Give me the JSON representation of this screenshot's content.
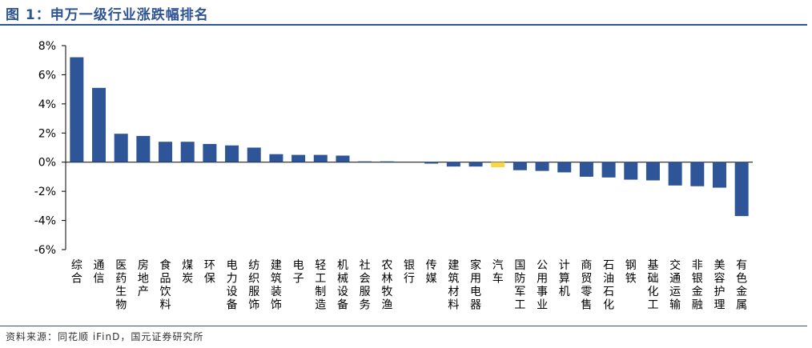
{
  "header": {
    "title": "图 1：申万一级行业涨跌幅排名"
  },
  "footer": {
    "source": "资料来源：同花顺 iFinD，国元证券研究所"
  },
  "colors": {
    "bar": "#2E5597",
    "highlight": "#F9D548",
    "brand": "#2E5495"
  },
  "chart_data": {
    "type": "bar",
    "title": "申万一级行业涨跌幅排名",
    "xlabel": "",
    "ylabel": "",
    "ylim": [
      -6,
      8
    ],
    "yticks": [
      8,
      6,
      4,
      2,
      0,
      -2,
      -4,
      -6
    ],
    "ytick_labels": [
      "8%",
      "6%",
      "4%",
      "2%",
      "0%",
      "-2%",
      "-4%",
      "-6%"
    ],
    "grid": false,
    "highlight_category": "汽车",
    "categories": [
      "综合",
      "通信",
      "医药生物",
      "房地产",
      "食品饮料",
      "煤炭",
      "环保",
      "电力设备",
      "纺织服饰",
      "建筑装饰",
      "电子",
      "轻工制造",
      "机械设备",
      "社会服务",
      "农林牧渔",
      "银行",
      "传媒",
      "建筑材料",
      "家用电器",
      "汽车",
      "国防军工",
      "公用事业",
      "计算机",
      "商贸零售",
      "石油石化",
      "钢铁",
      "基础化工",
      "交通运输",
      "非银金融",
      "美容护理",
      "有色金属"
    ],
    "values": [
      7.2,
      5.1,
      1.95,
      1.8,
      1.4,
      1.4,
      1.25,
      1.15,
      1.0,
      0.55,
      0.5,
      0.5,
      0.45,
      0.05,
      0.02,
      0.0,
      -0.1,
      -0.3,
      -0.3,
      -0.35,
      -0.55,
      -0.6,
      -0.7,
      -1.0,
      -1.05,
      -1.2,
      -1.25,
      -1.6,
      -1.65,
      -1.75,
      -3.7
    ]
  }
}
